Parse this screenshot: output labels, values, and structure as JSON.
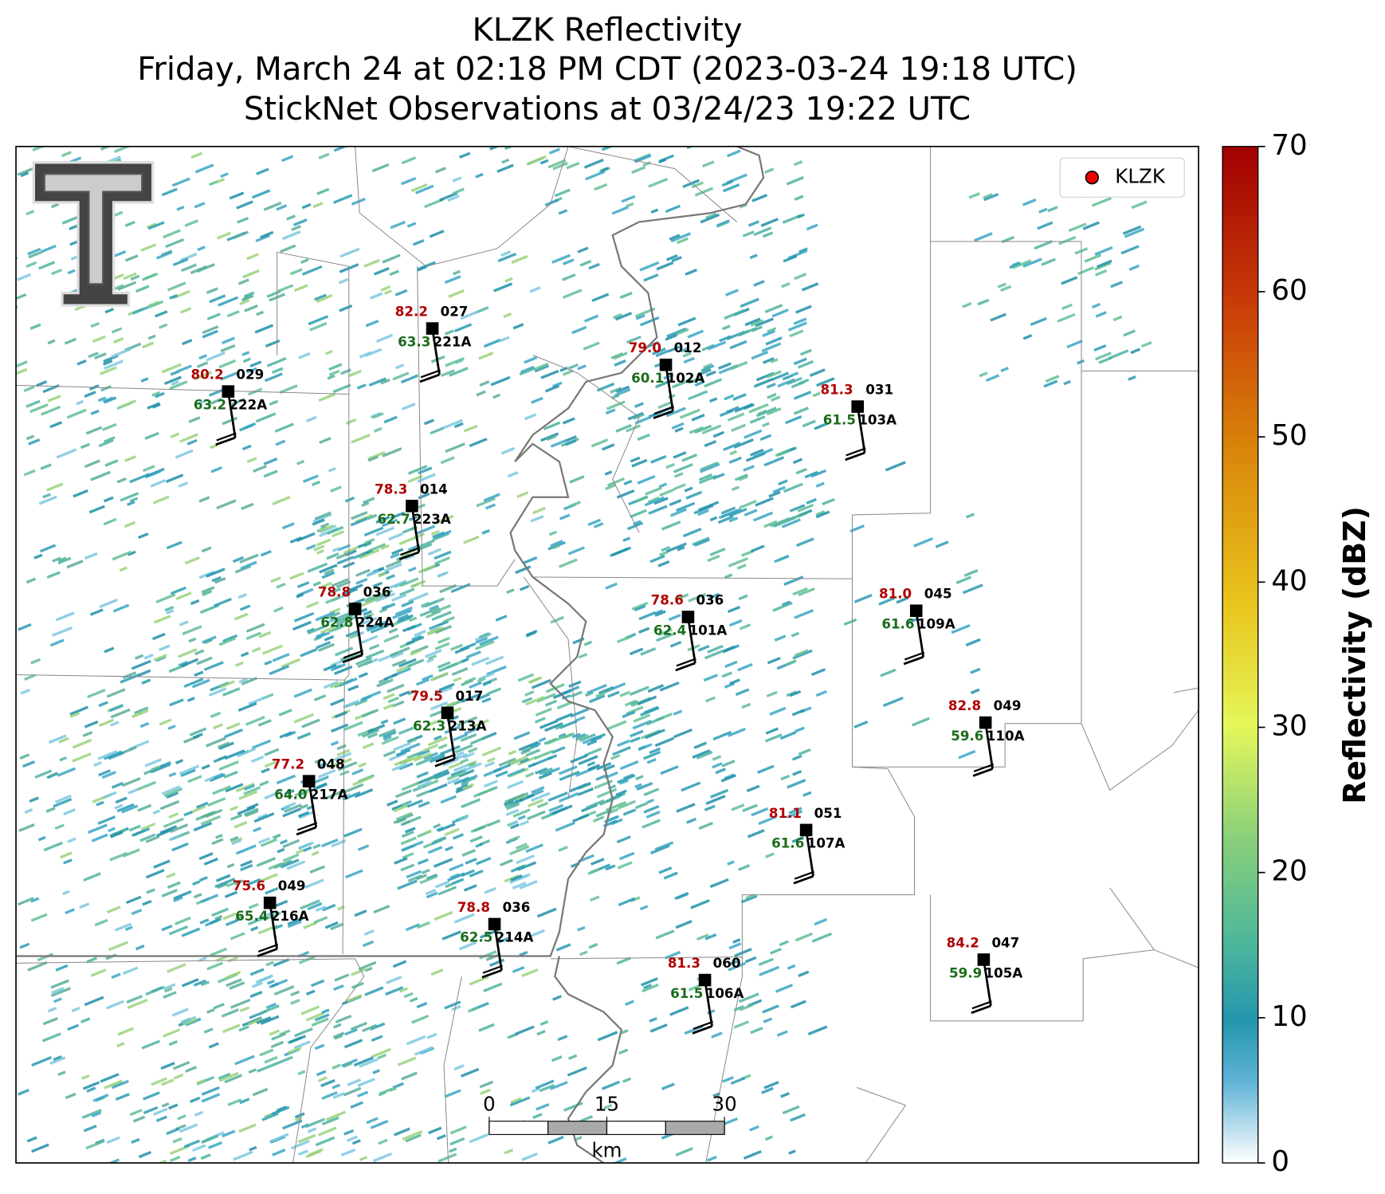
{
  "title": {
    "line1": "KLZK Reflectivity",
    "line2": "Friday, March 24 at 02:18 PM CDT (2023-03-24 19:18 UTC)",
    "line3": "StickNet Observations at 03/24/23 19:22 UTC"
  },
  "legend": {
    "label": "KLZK"
  },
  "stations": [
    {
      "temp": "80.2",
      "pres": "029",
      "dew": "63.2",
      "id": "222A"
    },
    {
      "temp": "82.2",
      "pres": "027",
      "dew": "63.3",
      "id": "221A"
    },
    {
      "temp": "79.0",
      "pres": "012",
      "dew": "60.1",
      "id": "102A"
    },
    {
      "temp": "81.3",
      "pres": "031",
      "dew": "61.5",
      "id": "103A"
    },
    {
      "temp": "78.3",
      "pres": "014",
      "dew": "62.7",
      "id": "223A"
    },
    {
      "temp": "78.8",
      "pres": "036",
      "dew": "62.8",
      "id": "224A"
    },
    {
      "temp": "78.6",
      "pres": "036",
      "dew": "62.4",
      "id": "101A"
    },
    {
      "temp": "81.0",
      "pres": "045",
      "dew": "61.6",
      "id": "109A"
    },
    {
      "temp": "79.5",
      "pres": "017",
      "dew": "62.3",
      "id": "213A"
    },
    {
      "temp": "82.8",
      "pres": "049",
      "dew": "59.6",
      "id": "110A"
    },
    {
      "temp": "77.2",
      "pres": "048",
      "dew": "64.0",
      "id": "217A"
    },
    {
      "temp": "81.1",
      "pres": "051",
      "dew": "61.6",
      "id": "107A"
    },
    {
      "temp": "75.6",
      "pres": "049",
      "dew": "65.4",
      "id": "216A"
    },
    {
      "temp": "78.8",
      "pres": "036",
      "dew": "62.5",
      "id": "214A"
    },
    {
      "temp": "81.3",
      "pres": "060",
      "dew": "61.5",
      "id": "106A"
    },
    {
      "temp": "84.2",
      "pres": "047",
      "dew": "59.9",
      "id": "105A"
    }
  ],
  "colorbar": {
    "label": "Reflectivity (dBZ)",
    "range": [
      0,
      70
    ],
    "ticks": [
      0,
      10,
      20,
      30,
      40,
      50,
      60,
      70
    ]
  },
  "scale_bar": {
    "range": [
      0,
      30
    ],
    "ticks": [
      0,
      15,
      30
    ],
    "unit": "km"
  }
}
